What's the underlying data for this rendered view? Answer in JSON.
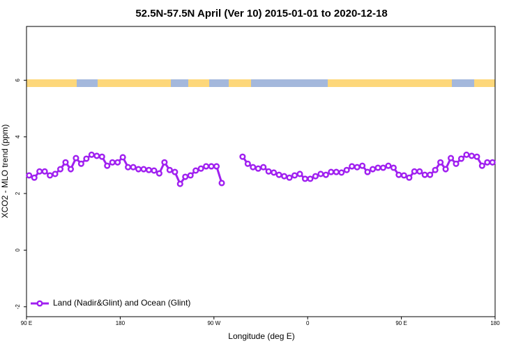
{
  "chart_data": {
    "type": "line",
    "title": "52.5N-57.5N April (Ver 10)   2015-01-01 to 2020-12-18",
    "x_label": "Longitude (deg E)",
    "y_label": "XCO2 - MLO trend (ppm)",
    "xlim": [
      90,
      540
    ],
    "ylim": [
      -2.35,
      7.9
    ],
    "xticks": [
      {
        "value": 90,
        "label": "90 E"
      },
      180,
      {
        "value": 270,
        "label": "90 W"
      },
      {
        "value": 360,
        "label": "0"
      },
      {
        "value": 450,
        "label": "90 E"
      },
      {
        "value": 540,
        "label": "180"
      }
    ],
    "yticks": [
      -2,
      0,
      2,
      4,
      6
    ],
    "legend_position": "bottom-left",
    "x": [
      92.5,
      97.5,
      102.5,
      107.5,
      112.5,
      117.5,
      122.5,
      127.5,
      132.5,
      137.5,
      142.5,
      147.5,
      152.5,
      157.5,
      162.5,
      167.5,
      172.5,
      177.5,
      182.5,
      187.5,
      192.5,
      197.5,
      202.5,
      207.5,
      212.5,
      217.5,
      222.5,
      227.5,
      232.5,
      237.5,
      242.5,
      247.5,
      252.5,
      257.5,
      262.5,
      267.5,
      272.5,
      277.5,
      282.5,
      287.5,
      292.5,
      297.5,
      302.5,
      307.5,
      312.5,
      317.5,
      322.5,
      327.5,
      332.5,
      337.5,
      342.5,
      347.5,
      352.5,
      357.5,
      362.5,
      367.5,
      372.5,
      377.5,
      382.5,
      387.5,
      392.5,
      397.5,
      402.5,
      407.5,
      412.5,
      417.5,
      422.5,
      427.5,
      432.5,
      437.5,
      442.5,
      447.5,
      452.5,
      457.5,
      462.5,
      467.5,
      472.5,
      477.5,
      482.5,
      487.5,
      492.5,
      497.5,
      502.5,
      507.5,
      512.5,
      517.5,
      522.5,
      527.5,
      532.5,
      537.5
    ],
    "series": [
      {
        "name": "Land (Nadir&Glint) and Ocean (Glint)",
        "color": "#a020f0",
        "values": [
          2.64,
          2.56,
          2.78,
          2.78,
          2.64,
          2.69,
          2.86,
          3.1,
          2.86,
          3.25,
          3.05,
          3.23,
          3.37,
          3.33,
          3.3,
          2.98,
          3.1,
          3.1,
          3.28,
          2.93,
          2.93,
          2.86,
          2.86,
          2.83,
          2.81,
          2.71,
          3.1,
          2.83,
          2.76,
          2.34,
          2.59,
          2.64,
          2.81,
          2.88,
          2.96,
          2.96,
          2.96,
          2.37,
          null,
          null,
          null,
          3.3,
          3.05,
          2.93,
          2.88,
          2.93,
          2.78,
          2.74,
          2.66,
          2.61,
          2.56,
          2.64,
          2.69,
          2.52,
          2.52,
          2.61,
          2.69,
          2.66,
          2.76,
          2.76,
          2.74,
          2.83,
          2.96,
          2.93,
          2.98,
          2.76,
          2.86,
          2.91,
          2.91,
          2.98,
          2.91,
          2.66,
          2.64,
          2.56,
          2.78,
          2.78,
          2.66,
          2.66,
          2.83,
          3.1,
          2.86,
          3.25,
          3.05,
          3.23,
          3.37,
          3.33,
          3.3,
          2.98,
          3.1,
          3.1
        ]
      }
    ]
  }
}
